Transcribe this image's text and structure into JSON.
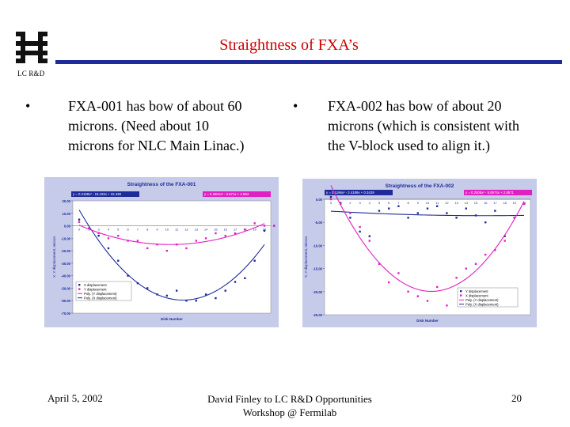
{
  "header": {
    "title": "Straightness of FXA’s",
    "logo_text": "LC R&D",
    "rule_color": "#1f2b99",
    "title_color": "#cc0000"
  },
  "bullets": [
    {
      "symbol": "•",
      "lines": [
        "FXA-001 has bow of about 60",
        "microns.  (Need about 10",
        "microns for NLC Main Linac.)"
      ]
    },
    {
      "symbol": "•",
      "lines": [
        "FXA-002 has bow of about 20",
        "microns (which is consistent with",
        "the V-block used to align it.)"
      ]
    }
  ],
  "footer": {
    "date": "April 5, 2002",
    "center_line1": "David Finley to LC R&D Opportunities",
    "center_line2": "Workshop @ Fermilab",
    "page": "20"
  },
  "chart_data": [
    {
      "type": "scatter",
      "title": "Straightness of the FXA-001",
      "xlabel": "Disk Number",
      "ylabel": "X, Y displacement, micron",
      "x_ticks": [
        "0",
        "1",
        "3",
        "4",
        "5",
        "6",
        "7",
        "8",
        "9",
        "10",
        "11",
        "12",
        "13",
        "14",
        "15",
        "16",
        "17",
        "18",
        "19",
        "20"
      ],
      "ylim": [
        -70,
        20
      ],
      "y_ticks": [
        "20.00",
        "10.00",
        "0.00",
        "-10.00",
        "-20.00",
        "-30.00",
        "-40.00",
        "-50.00",
        "-60.00",
        "-70.00"
      ],
      "eq_blue": "y = 0.2188x² - 15.193x + 22.438",
      "eq_pink": "y = 0.2601x² - 3.671x + 2.894",
      "legend": [
        "X displacement",
        "Y displacement",
        "Poly. (Y displacement)",
        "Poly. (X displacement)"
      ],
      "series": [
        {
          "name": "X displacement",
          "color": "#1f2b99",
          "x": [
            0,
            1,
            2,
            3,
            4,
            5,
            6,
            7,
            8,
            9,
            10,
            11,
            12,
            13,
            14,
            15,
            16,
            17,
            18,
            19,
            20
          ],
          "y": [
            5,
            -2,
            -8,
            -18,
            -28,
            -40,
            -46,
            -50,
            -55,
            -56,
            -52,
            -60,
            -60,
            -55,
            -58,
            -52,
            -45,
            -42,
            -28,
            -4,
            0
          ]
        },
        {
          "name": "Y displacement",
          "color": "#e020c0",
          "x": [
            0,
            1,
            2,
            3,
            4,
            5,
            6,
            7,
            8,
            9,
            10,
            11,
            12,
            13,
            14,
            15,
            16,
            17,
            18,
            19,
            20
          ],
          "y": [
            3,
            -2,
            -6,
            -10,
            -8,
            -12,
            -12,
            -18,
            -15,
            -20,
            -15,
            -18,
            -12,
            -10,
            -6,
            -8,
            -6,
            -3,
            2,
            0,
            0
          ]
        }
      ],
      "plot_bg": "#c6cbe9"
    },
    {
      "type": "scatter",
      "title": "Straightness of the FXA-002",
      "xlabel": "Disk Number",
      "ylabel": "X, Y displacement, micron",
      "x_ticks": [
        "0",
        "1",
        "2",
        "3",
        "4",
        "5",
        "6",
        "7",
        "8",
        "9",
        "10",
        "11",
        "12",
        "13",
        "14",
        "15",
        "16",
        "17",
        "18",
        "19",
        "20"
      ],
      "ylim": [
        -25,
        0
      ],
      "y_ticks": [
        "0.00",
        "-5.00",
        "-10.00",
        "-15.00",
        "-20.00",
        "-25.00"
      ],
      "eq_blue": "y = 0.1196x² - 2.4189x + 0.3429",
      "eq_pink": "y = 0.2508x² - 5.0974x + 2.8571",
      "legend": [
        "Y displacement",
        "X displacement",
        "Poly. (Y displacement)",
        "Poly. (X displacement)"
      ],
      "series": [
        {
          "name": "X displacement",
          "color": "#1f2b99",
          "x": [
            0,
            1,
            2,
            3,
            4,
            5,
            6,
            7,
            8,
            9,
            10,
            11,
            12,
            13,
            14,
            15,
            16,
            17,
            18,
            19,
            20
          ],
          "y": [
            0.5,
            -0.8,
            -4,
            -7,
            -8,
            -2.5,
            -2,
            -1.5,
            -4,
            -3,
            -2,
            -1.5,
            -3,
            -4,
            -2,
            -3.5,
            -5,
            -2.5,
            -8,
            -4,
            -1
          ]
        },
        {
          "name": "Y displacement",
          "color": "#e020c0",
          "x": [
            0,
            1,
            2,
            3,
            4,
            5,
            6,
            7,
            8,
            9,
            10,
            11,
            12,
            13,
            14,
            15,
            16,
            17,
            18,
            19,
            20
          ],
          "y": [
            0,
            -1,
            -3,
            -6,
            -9,
            -14,
            -18,
            -16,
            -20,
            -21,
            -22,
            -19,
            -23,
            -17,
            -15,
            -14,
            -12,
            -11,
            -9,
            -4,
            -1
          ]
        }
      ],
      "plot_bg": "#c6cbe9"
    }
  ]
}
